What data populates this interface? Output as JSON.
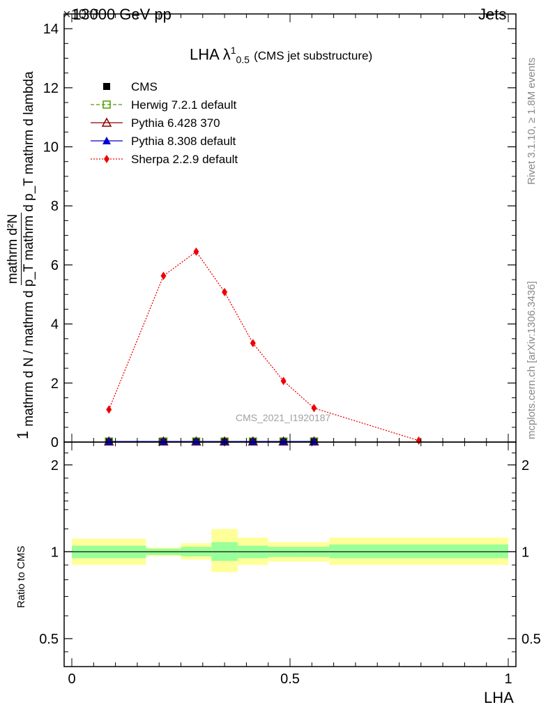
{
  "header": {
    "energy_label": "13000 GeV pp",
    "process_label": "Jets",
    "exponent_label": "×10⁻³"
  },
  "side_text": {
    "rivet": "Rivet 3.1.10, ≥ 1.8M events",
    "mcplots": "mcplots.cern.ch [arXiv:1306.3436]"
  },
  "chart_data": [
    {
      "type": "line",
      "title": "LHA λ¹₀.₅ (CMS jet substructure)",
      "title_main": "LHA λ",
      "title_sup": "1",
      "title_sub": "0.5",
      "title_note": "(CMS jet substructure)",
      "ylabel_numerator": "mathrm d²N",
      "ylabel_denominator": "mathrm d N / mathrm d p_T mathrm d p_T mathrm d lambda",
      "ylabel_fraction_one": "1",
      "ylabel_lines": [
        "mathrm d²N",
        "mathrm d p_T mathrm d lambda",
        "1",
        "mathrm d N / mathrm d p_T"
      ],
      "xlim": [
        0,
        1
      ],
      "ylim": [
        0,
        14.5
      ],
      "y_scale_factor": "1e-3",
      "y_ticks": [
        0,
        2,
        4,
        6,
        8,
        10,
        12,
        14
      ],
      "y_tick_labels": [
        "0",
        "2",
        "4",
        "6",
        "8",
        "10",
        "12",
        "14"
      ],
      "watermark": "CMS_2021_I1920187",
      "legend_position": "top-left",
      "series": [
        {
          "name": "CMS",
          "style": "black-square",
          "color": "#000000",
          "x": [
            0.085,
            0.21,
            0.285,
            0.35,
            0.415,
            0.485,
            0.555
          ],
          "values": [
            0.02,
            0.02,
            0.02,
            0.02,
            0.02,
            0.02,
            0.02
          ]
        },
        {
          "name": "Herwig 7.2.1 default",
          "style": "dashed-open-square",
          "color": "#4a9a00",
          "x": [
            0.085,
            0.21,
            0.285,
            0.35,
            0.415,
            0.485,
            0.555
          ],
          "values": [
            0.02,
            0.02,
            0.02,
            0.02,
            0.02,
            0.02,
            0.02
          ]
        },
        {
          "name": "Pythia 6.428 370",
          "style": "solid-open-triangle",
          "color": "#8b0000",
          "x": [
            0.085,
            0.21,
            0.285,
            0.35,
            0.415,
            0.485,
            0.555
          ],
          "values": [
            0.02,
            0.02,
            0.02,
            0.02,
            0.02,
            0.02,
            0.02
          ]
        },
        {
          "name": "Pythia 8.308 default",
          "style": "solid-filled-triangle",
          "color": "#0000cc",
          "x": [
            0.085,
            0.21,
            0.285,
            0.35,
            0.415,
            0.485,
            0.555
          ],
          "values": [
            0.02,
            0.02,
            0.02,
            0.02,
            0.02,
            0.02,
            0.02
          ]
        },
        {
          "name": "Sherpa 2.2.9 default",
          "style": "dotted-diamond",
          "color": "#ee0000",
          "x": [
            0.085,
            0.21,
            0.285,
            0.35,
            0.415,
            0.485,
            0.555,
            0.795
          ],
          "values": [
            1.1,
            5.63,
            6.45,
            5.08,
            3.35,
            2.07,
            1.15,
            0.05
          ]
        }
      ]
    },
    {
      "type": "area",
      "ylabel": "Ratio to CMS",
      "xlabel": "LHA",
      "xlim": [
        0,
        1
      ],
      "ylim": [
        0.4,
        2.4
      ],
      "y_scale": "log",
      "y_ticks": [
        0.5,
        1,
        2
      ],
      "y_tick_labels": [
        "0.5",
        "1",
        "2"
      ],
      "x_ticks": [
        0,
        0.5,
        1
      ],
      "x_tick_labels": [
        "0",
        "0.5",
        "1"
      ],
      "reference_line": 1,
      "inner_band_color": "#99ff99",
      "outer_band_color": "#ffff99",
      "bins": [
        {
          "x_lo": 0.0,
          "x_hi": 0.17,
          "inner": [
            0.95,
            1.05
          ],
          "outer": [
            0.9,
            1.11
          ]
        },
        {
          "x_lo": 0.17,
          "x_hi": 0.25,
          "inner": [
            0.975,
            1.025
          ],
          "outer": [
            0.965,
            1.035
          ]
        },
        {
          "x_lo": 0.25,
          "x_hi": 0.32,
          "inner": [
            0.965,
            1.04
          ],
          "outer": [
            0.94,
            1.07
          ]
        },
        {
          "x_lo": 0.32,
          "x_hi": 0.38,
          "inner": [
            0.93,
            1.08
          ],
          "outer": [
            0.85,
            1.2
          ]
        },
        {
          "x_lo": 0.38,
          "x_hi": 0.45,
          "inner": [
            0.95,
            1.05
          ],
          "outer": [
            0.9,
            1.12
          ]
        },
        {
          "x_lo": 0.45,
          "x_hi": 0.52,
          "inner": [
            0.96,
            1.04
          ],
          "outer": [
            0.925,
            1.08
          ]
        },
        {
          "x_lo": 0.52,
          "x_hi": 0.59,
          "inner": [
            0.96,
            1.04
          ],
          "outer": [
            0.925,
            1.08
          ]
        },
        {
          "x_lo": 0.59,
          "x_hi": 1.0,
          "inner": [
            0.95,
            1.06
          ],
          "outer": [
            0.9,
            1.12
          ]
        }
      ]
    }
  ]
}
